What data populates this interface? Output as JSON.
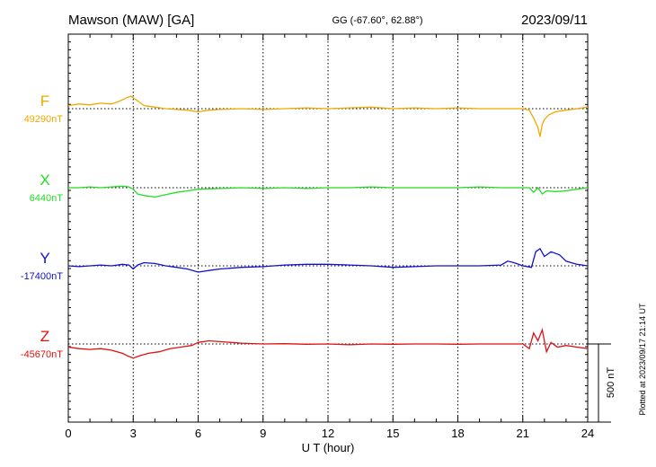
{
  "header": {
    "station": "Mawson (MAW)  [GA]",
    "coords": "GG (-67.60°,  62.88°)",
    "date": "2023/09/11"
  },
  "footer": {
    "plotted": "Plotted at 2023/09/17 21:14 UT"
  },
  "chart_data": {
    "type": "line",
    "xlabel": "U T (hour)",
    "xlim": [
      0,
      24
    ],
    "x_ticks": [
      "0",
      "3",
      "6",
      "9",
      "12",
      "15",
      "18",
      "21",
      "24"
    ],
    "scale_bar_label": "500 nT",
    "scale_bar_nT": 500,
    "grid": true,
    "series": [
      {
        "name": "F",
        "baseline_label": "49290nT",
        "baseline_nT": 49290,
        "color": "#f0a800",
        "x": [
          0,
          0.5,
          1,
          1.5,
          2,
          2.4,
          2.7,
          2.9,
          3.1,
          3.5,
          4,
          4.5,
          5,
          5.5,
          6,
          6.5,
          7,
          8,
          9,
          10,
          11,
          12,
          13,
          14,
          15,
          16,
          17,
          18,
          19,
          20,
          20.5,
          21,
          21.3,
          21.5,
          21.7,
          21.8,
          21.9,
          22,
          22.2,
          22.5,
          23,
          23.5,
          24
        ],
        "y": [
          49310,
          49320,
          49315,
          49325,
          49320,
          49340,
          49360,
          49370,
          49350,
          49310,
          49300,
          49290,
          49285,
          49280,
          49270,
          49280,
          49285,
          49290,
          49285,
          49290,
          49295,
          49290,
          49295,
          49300,
          49290,
          49295,
          49290,
          49295,
          49290,
          49290,
          49290,
          49290,
          49280,
          49230,
          49170,
          49110,
          49190,
          49220,
          49250,
          49270,
          49280,
          49290,
          49300
        ]
      },
      {
        "name": "X",
        "baseline_label": "6440nT",
        "baseline_nT": 6440,
        "color": "#22dd22",
        "x": [
          0,
          0.5,
          1,
          1.5,
          2,
          2.5,
          2.8,
          3,
          3.2,
          3.5,
          4,
          4.5,
          5,
          5.5,
          6,
          7,
          8,
          9,
          10,
          11,
          12,
          13,
          14,
          15,
          16,
          17,
          18,
          19,
          20,
          20.5,
          21,
          21.3,
          21.5,
          21.7,
          21.9,
          22.1,
          22.5,
          23,
          23.5,
          24
        ],
        "y": [
          6440,
          6440,
          6445,
          6440,
          6445,
          6450,
          6445,
          6430,
          6400,
          6390,
          6380,
          6395,
          6410,
          6420,
          6430,
          6435,
          6440,
          6435,
          6440,
          6435,
          6440,
          6440,
          6445,
          6440,
          6440,
          6440,
          6440,
          6445,
          6440,
          6440,
          6440,
          6440,
          6410,
          6440,
          6400,
          6420,
          6415,
          6420,
          6430,
          6440
        ]
      },
      {
        "name": "Y",
        "baseline_label": "-17400nT",
        "baseline_nT": -17400,
        "color": "#1111cc",
        "x": [
          0,
          0.5,
          1,
          1.5,
          2,
          2.5,
          2.8,
          3,
          3.2,
          3.5,
          4,
          4.5,
          5,
          5.5,
          6,
          6.5,
          7,
          8,
          9,
          10,
          11,
          12,
          13,
          14,
          15,
          16,
          17,
          18,
          19,
          20,
          20.3,
          20.6,
          21,
          21.4,
          21.6,
          21.8,
          22,
          22.3,
          22.7,
          23,
          23.5,
          24
        ],
        "y": [
          -17400,
          -17405,
          -17400,
          -17395,
          -17400,
          -17390,
          -17395,
          -17420,
          -17395,
          -17380,
          -17385,
          -17400,
          -17410,
          -17420,
          -17440,
          -17430,
          -17420,
          -17410,
          -17405,
          -17395,
          -17390,
          -17390,
          -17395,
          -17400,
          -17410,
          -17405,
          -17400,
          -17400,
          -17400,
          -17395,
          -17370,
          -17380,
          -17400,
          -17410,
          -17310,
          -17290,
          -17340,
          -17310,
          -17330,
          -17370,
          -17390,
          -17400
        ]
      },
      {
        "name": "Z",
        "baseline_label": "-45670nT",
        "baseline_nT": -45670,
        "color": "#dd1111",
        "x": [
          0,
          0.5,
          1,
          1.5,
          2,
          2.5,
          2.8,
          3,
          3.3,
          3.7,
          4.2,
          4.7,
          5.2,
          5.7,
          6,
          6.5,
          7,
          8,
          9,
          10,
          11,
          12,
          13,
          14,
          15,
          16,
          17,
          18,
          19,
          20,
          21,
          21.3,
          21.5,
          21.7,
          21.9,
          22.1,
          22.3,
          22.6,
          23,
          23.5,
          24
        ],
        "y": [
          -45690,
          -45700,
          -45705,
          -45700,
          -45710,
          -45730,
          -45750,
          -45760,
          -45745,
          -45730,
          -45720,
          -45700,
          -45690,
          -45680,
          -45660,
          -45650,
          -45655,
          -45665,
          -45670,
          -45668,
          -45672,
          -45670,
          -45675,
          -45670,
          -45672,
          -45670,
          -45670,
          -45672,
          -45670,
          -45670,
          -45670,
          -45700,
          -45600,
          -45650,
          -45580,
          -45720,
          -45660,
          -45690,
          -45680,
          -45690,
          -45700
        ]
      }
    ]
  }
}
